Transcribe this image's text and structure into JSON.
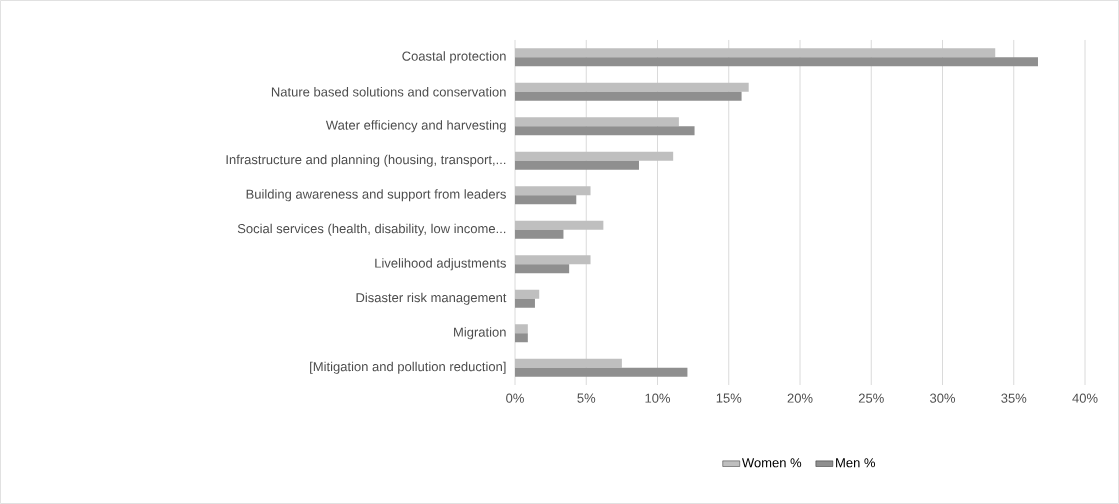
{
  "chart_data": {
    "type": "bar",
    "orientation": "horizontal",
    "categories": [
      "Coastal protection",
      "Nature based solutions and conservation",
      "Water efficiency and harvesting",
      "Infrastructure and planning (housing, transport,...",
      "Building awareness and support from leaders",
      "Social services (health, disability, low income...",
      "Livelihood adjustments",
      "Disaster risk management",
      "Migration",
      "[Mitigation and pollution reduction]"
    ],
    "series": [
      {
        "name": "Women %",
        "color": "#bfbfbf",
        "values": [
          33.7,
          16.4,
          11.5,
          11.1,
          5.3,
          6.2,
          5.3,
          1.7,
          0.9,
          7.5
        ]
      },
      {
        "name": "Men %",
        "color": "#8f8f8f",
        "values": [
          36.7,
          15.9,
          12.6,
          8.7,
          4.3,
          3.4,
          3.8,
          1.4,
          0.9,
          12.1
        ]
      }
    ],
    "xlim": [
      0,
      40
    ],
    "xticks": [
      {
        "value": 0,
        "label": "0%"
      },
      {
        "value": 5,
        "label": "5%"
      },
      {
        "value": 10,
        "label": "10%"
      },
      {
        "value": 15,
        "label": "15%"
      },
      {
        "value": 20,
        "label": "20%"
      },
      {
        "value": 25,
        "label": "25%"
      },
      {
        "value": 30,
        "label": "30%"
      },
      {
        "value": 35,
        "label": "35%"
      },
      {
        "value": 40,
        "label": "40%"
      }
    ],
    "grid": "x",
    "legend": "bottom"
  }
}
